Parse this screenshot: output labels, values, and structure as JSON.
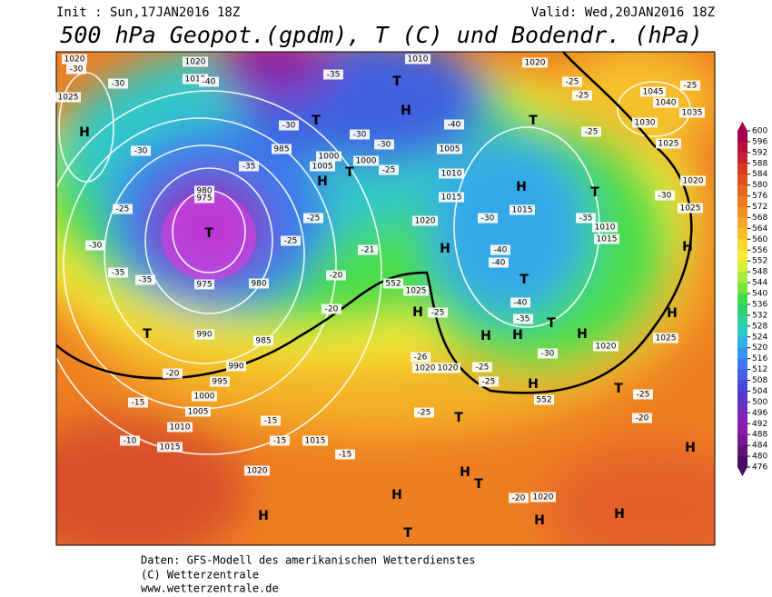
{
  "header": {
    "init": "Init : Sun,17JAN2016 18Z",
    "valid": "Valid: Wed,20JAN2016 18Z",
    "title": "500 hPa Geopot.(gpdm), T (C) und Bodendr. (hPa)"
  },
  "colorbar": {
    "ticks": [
      600,
      596,
      592,
      588,
      584,
      580,
      576,
      572,
      568,
      564,
      560,
      556,
      552,
      548,
      544,
      540,
      536,
      532,
      528,
      524,
      520,
      516,
      512,
      508,
      504,
      500,
      496,
      492,
      488,
      484,
      480,
      476
    ],
    "colors": [
      "#a0004a",
      "#b80e3c",
      "#c8202e",
      "#d63a22",
      "#e05020",
      "#e86420",
      "#ee7a22",
      "#f29024",
      "#f6a628",
      "#f8be2c",
      "#f8d632",
      "#f4ec36",
      "#d4f03a",
      "#a8ec3e",
      "#78e440",
      "#40dc48",
      "#30d070",
      "#2ed0a0",
      "#2ec8c8",
      "#30b0e4",
      "#3894f0",
      "#3c78ec",
      "#4060e0",
      "#4848d4",
      "#5838cc",
      "#6c2cc4",
      "#8024b8",
      "#8c1ca8",
      "#781890",
      "#601478",
      "#4a0c60"
    ]
  },
  "map_labels": [
    "1020",
    "-30",
    "1025",
    "H",
    "-30",
    "-30",
    "1020",
    "1015",
    "-40",
    "980",
    "975",
    "T",
    "975",
    "980",
    "-35",
    "-35",
    "-30",
    "T",
    "990",
    "985",
    "990",
    "995",
    "1000",
    "1005",
    "1010",
    "1015",
    "1020",
    "H",
    "-20",
    "-15",
    "-10",
    "-15",
    "-15",
    "1015",
    "-15",
    "T",
    "985",
    "1000",
    "1005",
    "H",
    "T",
    "1000",
    "-25",
    "-25",
    "-21",
    "-20",
    "-20",
    "1010",
    "T",
    "H",
    "1005",
    "1010",
    "1015",
    "1020",
    "H",
    "552",
    "1025",
    "H",
    "-25",
    "-26",
    "1020",
    "1020",
    "-25",
    "-25",
    "552",
    "H",
    "T",
    "-25",
    "H",
    "T",
    "H",
    "T",
    "-20",
    "1020",
    "H",
    "-30",
    "1015",
    "H",
    "-40",
    "-40",
    "T",
    "-40",
    "-35",
    "T",
    "H",
    "H",
    "H",
    "-30",
    "1020",
    "1025",
    "H",
    "H",
    "1010",
    "1015",
    "-35",
    "T",
    "1020",
    "1025",
    "-30",
    "T",
    "1020",
    "-25",
    "1045",
    "1040",
    "1035",
    "1030",
    "1025",
    "-25",
    "-25",
    "-40",
    "-25",
    "T",
    "-25",
    "-20",
    "H",
    "H",
    "-35",
    "-30",
    "-30",
    "-30",
    "-25",
    "-35",
    "-25"
  ],
  "footer": [
    "Daten: GFS-Modell des amerikanischen Wetterdienstes",
    "(C) Wetterzentrale",
    "www.wetterzentrale.de"
  ]
}
